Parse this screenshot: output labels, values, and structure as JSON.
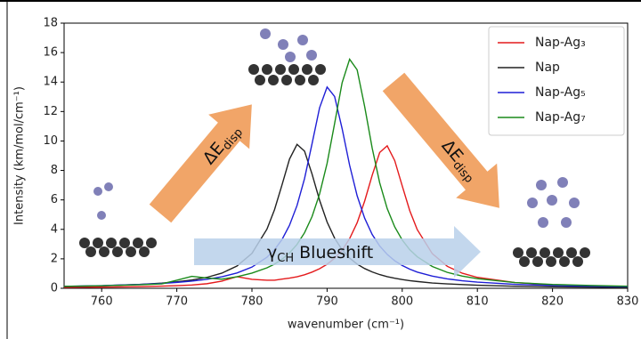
{
  "chart_data": {
    "type": "line",
    "x": [
      755,
      760,
      765,
      768,
      770,
      772,
      774,
      776,
      778,
      780,
      782,
      783,
      784,
      785,
      786,
      787,
      788,
      789,
      790,
      791,
      792,
      793,
      794,
      795,
      796,
      797,
      798,
      799,
      800,
      801,
      802,
      804,
      806,
      808,
      810,
      815,
      820,
      825,
      830
    ],
    "series": [
      {
        "name": "Nap-Ag₃",
        "color": "#e41a1c",
        "values": [
          0.06,
          0.08,
          0.11,
          0.15,
          0.18,
          0.22,
          0.31,
          0.49,
          0.79,
          0.61,
          0.55,
          0.55,
          0.62,
          0.69,
          0.78,
          0.92,
          1.1,
          1.33,
          1.63,
          2.04,
          2.59,
          3.37,
          4.45,
          5.92,
          7.67,
          9.22,
          9.67,
          8.67,
          6.95,
          5.27,
          3.98,
          2.35,
          1.49,
          1.02,
          0.74,
          0.39,
          0.24,
          0.16,
          0.11
        ]
      },
      {
        "name": "Nap",
        "color": "#222222",
        "values": [
          0.12,
          0.17,
          0.26,
          0.35,
          0.44,
          0.56,
          0.74,
          1.03,
          1.51,
          2.37,
          4.02,
          5.33,
          7.02,
          8.77,
          9.77,
          9.31,
          7.75,
          5.98,
          4.5,
          3.4,
          2.61,
          2.05,
          1.64,
          1.34,
          1.11,
          0.93,
          0.79,
          0.68,
          0.59,
          0.52,
          0.46,
          0.36,
          0.3,
          0.25,
          0.21,
          0.14,
          0.1,
          0.08,
          0.06
        ]
      },
      {
        "name": "Nap-Ag₅",
        "color": "#1f1fd6",
        "values": [
          0.13,
          0.18,
          0.26,
          0.33,
          0.4,
          0.49,
          0.61,
          0.78,
          1.04,
          1.44,
          2.11,
          2.62,
          3.31,
          4.28,
          5.62,
          7.45,
          9.82,
          12.25,
          13.66,
          13.02,
          10.84,
          8.35,
          6.28,
          4.76,
          3.65,
          2.87,
          2.3,
          1.87,
          1.55,
          1.3,
          1.1,
          0.83,
          0.64,
          0.51,
          0.42,
          0.27,
          0.19,
          0.14,
          0.11
        ]
      },
      {
        "name": "Nap-Ag₇",
        "color": "#1a8a1a",
        "values": [
          0.13,
          0.17,
          0.24,
          0.3,
          0.55,
          0.81,
          0.7,
          0.62,
          0.78,
          1.03,
          1.39,
          1.64,
          1.97,
          2.4,
          2.98,
          3.77,
          4.87,
          6.4,
          8.48,
          11.18,
          13.95,
          15.55,
          14.83,
          12.34,
          9.52,
          7.16,
          5.41,
          4.17,
          3.28,
          2.62,
          2.14,
          1.48,
          1.08,
          0.83,
          0.65,
          0.39,
          0.26,
          0.19,
          0.14
        ]
      }
    ],
    "xlim": [
      755,
      830
    ],
    "xticks": [
      760,
      770,
      780,
      790,
      800,
      810,
      820,
      830
    ],
    "ylim": [
      0,
      18
    ],
    "yticks": [
      0,
      2,
      4,
      6,
      8,
      10,
      12,
      14,
      16,
      18
    ],
    "xlabel": "wavenumber (cm⁻¹)",
    "ylabel": "Intensity (km/mol/cm⁻¹)",
    "legend": "upper right",
    "annotations": [
      {
        "main": "ΔE",
        "sub": "disp"
      },
      {
        "main": "ΔE",
        "sub": "disp"
      },
      {
        "main": "γ",
        "sub": "CH",
        "rest": " Blueshift"
      }
    ]
  }
}
